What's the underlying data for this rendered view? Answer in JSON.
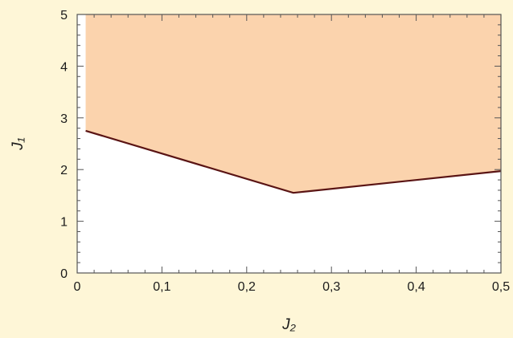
{
  "chart_data": {
    "type": "area",
    "title": "",
    "xlabel": "J₂",
    "ylabel": "J₁",
    "xlim": [
      0,
      0.5
    ],
    "ylim": [
      0,
      5
    ],
    "xticks": [
      0,
      0.1,
      0.2,
      0.3,
      0.4,
      0.5
    ],
    "xtick_labels": [
      "0",
      "0,1",
      "0,2",
      "0,3",
      "0,4",
      "0,5"
    ],
    "yticks": [
      0,
      1,
      2,
      3,
      4,
      5
    ],
    "ytick_labels": [
      "0",
      "1",
      "2",
      "3",
      "4",
      "5"
    ],
    "grid": false,
    "series": [
      {
        "x": [
          0.01,
          0.255,
          0.5
        ],
        "y": [
          2.75,
          1.55,
          1.97
        ],
        "line_color": "#5a1414"
      }
    ],
    "fill_above_color": "#fbd3ad",
    "background_color": "#ffffff"
  }
}
